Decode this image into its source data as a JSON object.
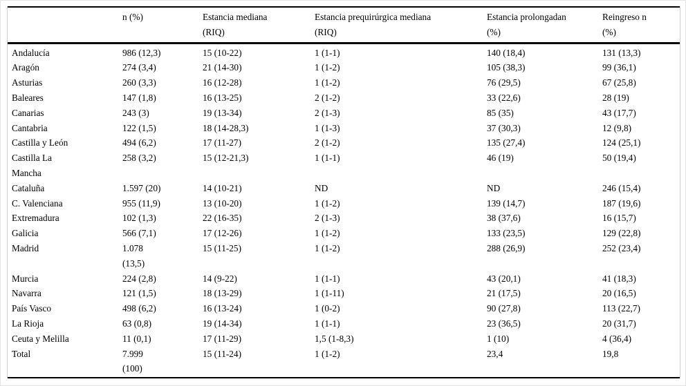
{
  "table": {
    "columns": [
      "",
      "n (%)",
      "Estancia mediana\n(RIQ)",
      "Estancia prequirúrgica mediana\n(RIQ)",
      "Estancia prolongadan\n(%)",
      "Reingreso n\n(%)"
    ],
    "rows": [
      {
        "cells": [
          "Andalucía",
          "986 (12,3)",
          "15 (10-22)",
          "1 (1-1)",
          "140 (18,4)",
          "131 (13,3)"
        ]
      },
      {
        "cells": [
          "Aragón",
          "274 (3,4)",
          "21 (14-30)",
          "1 (1-2)",
          "105 (38,3)",
          "99 (36,1)"
        ]
      },
      {
        "cells": [
          "Asturias",
          "260 (3,3)",
          "16 (12-28)",
          "1 (1-2)",
          "76 (29,5)",
          "67 (25,8)"
        ]
      },
      {
        "cells": [
          "Baleares",
          "147 (1,8)",
          "16 (13-25)",
          "2 (1-2)",
          "33 (22,6)",
          "28 (19)"
        ]
      },
      {
        "cells": [
          "Canarias",
          "243 (3)",
          "19 (13-34)",
          "2 (1-3)",
          "85 (35)",
          "43 (17,7)"
        ]
      },
      {
        "cells": [
          "Cantabria",
          "122 (1,5)",
          "18 (14-28,3)",
          "1 (1-3)",
          "37 (30,3)",
          "12 (9,8)"
        ]
      },
      {
        "cells": [
          "Castilla y León",
          "494 (6,2)",
          "17 (11-27)",
          "2 (1-2)",
          "135 (27,4)",
          "124 (25,1)"
        ]
      },
      {
        "cells": [
          "Castilla La\nMancha",
          "258 (3,2)",
          "15 (12-21,3)",
          "1 (1-1)",
          "46 (19)",
          "50 (19,4)"
        ]
      },
      {
        "cells": [
          "Cataluña",
          "1.597 (20)",
          "14 (10-21)",
          "ND",
          "ND",
          "246 (15,4)"
        ]
      },
      {
        "cells": [
          "C. Valenciana",
          "955 (11,9)",
          "13 (10-20)",
          "1 (1-2)",
          "139 (14,7)",
          "187 (19,6)"
        ]
      },
      {
        "cells": [
          "Extremadura",
          "102 (1,3)",
          "22 (16-35)",
          "2 (1-3)",
          "38 (37,6)",
          "16 (15,7)"
        ]
      },
      {
        "cells": [
          "Galicia",
          "566 (7,1)",
          "17 (12-26)",
          "1 (1-2)",
          "133 (23,5)",
          "129 (22,8)"
        ]
      },
      {
        "cells": [
          "Madrid",
          "1.078\n(13,5)",
          "15 (11-25)",
          "1 (1-2)",
          "288 (26,9)",
          "252 (23,4)"
        ]
      },
      {
        "cells": [
          "Murcia",
          "224 (2,8)",
          "14 (9-22)",
          "1 (1-1)",
          "43 (20,1)",
          "41 (18,3)"
        ]
      },
      {
        "cells": [
          "Navarra",
          "121 (1,5)",
          "18 (13-29)",
          "1 (1-11)",
          "21 (17,5)",
          "20 (16,5)"
        ]
      },
      {
        "cells": [
          "País Vasco",
          "498 (6,2)",
          "16 (13-24)",
          "1 (0-2)",
          "90 (27,8)",
          "113 (22,7)"
        ]
      },
      {
        "cells": [
          "La Rioja",
          "63 (0,8)",
          "19 (14-34)",
          "1 (1-1)",
          "23 (36,5)",
          "20 (31,7)"
        ]
      },
      {
        "cells": [
          "Ceuta y Melilla",
          "11 (0,1)",
          "17 (11-29)",
          "1,5 (1-8,3)",
          "1 (10)",
          "4 (36,4)"
        ]
      },
      {
        "cells": [
          "Total",
          "7.999\n(100)",
          "15 (11-24)",
          "1 (1-2)",
          "23,4",
          "19,8"
        ]
      }
    ]
  },
  "colors": {
    "text": "#000000",
    "rule": "#000000",
    "gridline": "#cfcfcf",
    "background": "#ffffff"
  }
}
